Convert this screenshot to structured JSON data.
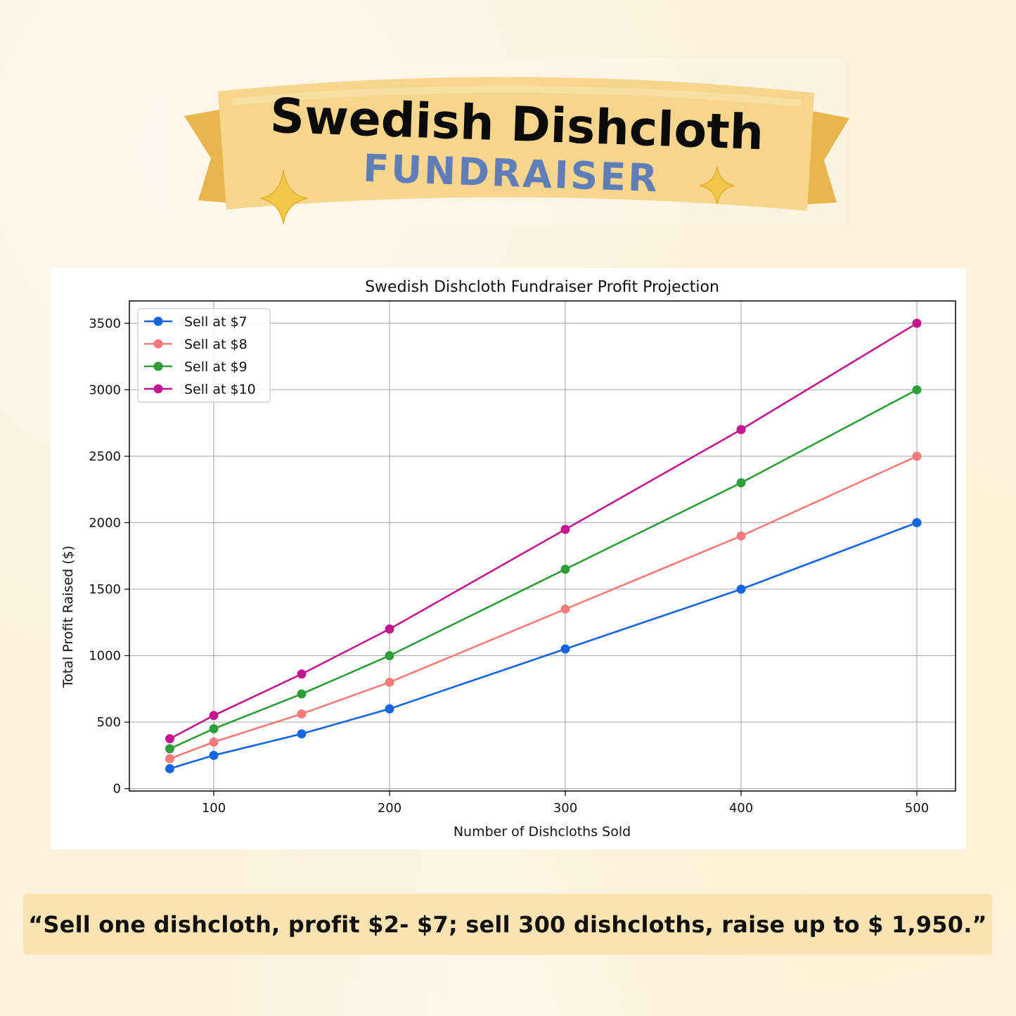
{
  "banner": {
    "title": "Swedish Dishcloth",
    "subtitle": "FUNDRAISER"
  },
  "quote": "“Sell one dishcloth, profit $2- $7; sell 300 dishcloths, raise up to $ 1,950.”",
  "colors": {
    "ribbon": "#f5d68c",
    "ribbon_dark": "#e9b64e",
    "subtitle": "#5f7db8",
    "quote_bg": "#fae3b3"
  },
  "chart_data": {
    "type": "line",
    "title": "Swedish Dishcloth Fundraiser Profit Projection",
    "xlabel": "Number of Dishcloths Sold",
    "ylabel": "Total Profit Raised ($)",
    "x": [
      75,
      100,
      150,
      200,
      300,
      400,
      500
    ],
    "xlim": [
      52,
      522
    ],
    "ylim": [
      -18,
      3668
    ],
    "xticks": [
      100,
      200,
      300,
      400,
      500
    ],
    "yticks": [
      0,
      500,
      1000,
      1500,
      2000,
      2500,
      3000,
      3500
    ],
    "grid": true,
    "legend_position": "top-left",
    "series": [
      {
        "name": "Sell at $7",
        "color": "#1565e0",
        "values": [
          150,
          250,
          412,
          600,
          1050,
          1500,
          2000
        ]
      },
      {
        "name": "Sell at $8",
        "color": "#f57a7a",
        "values": [
          225,
          350,
          562,
          800,
          1350,
          1900,
          2500
        ]
      },
      {
        "name": "Sell at $9",
        "color": "#2e9e3a",
        "values": [
          300,
          450,
          712,
          1000,
          1650,
          2300,
          3000
        ]
      },
      {
        "name": "Sell at $10",
        "color": "#c4178f",
        "values": [
          375,
          550,
          862,
          1200,
          1950,
          2700,
          3500
        ]
      }
    ]
  }
}
